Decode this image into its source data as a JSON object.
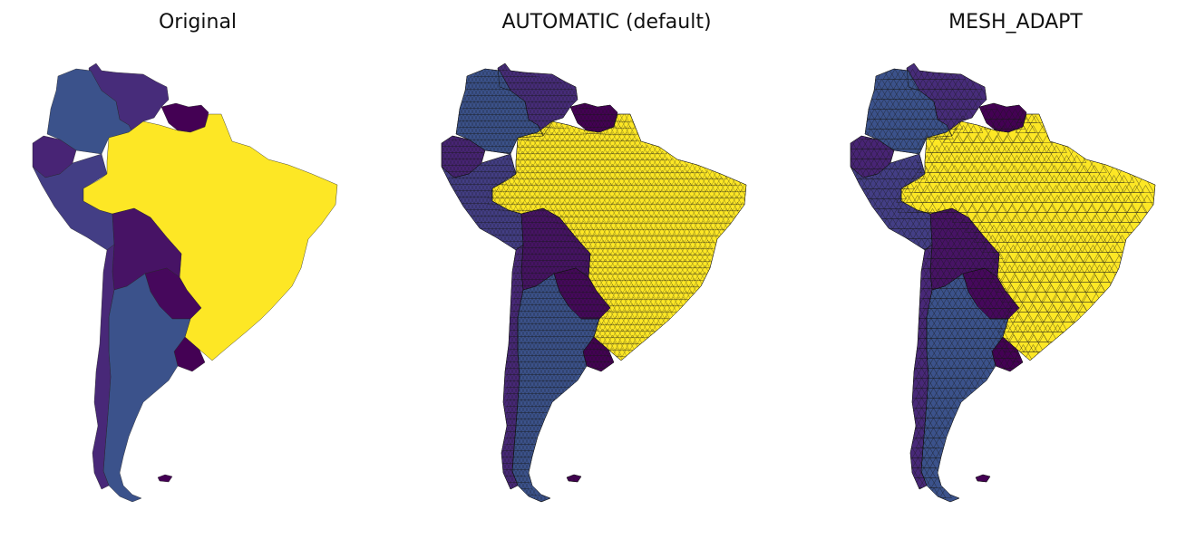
{
  "panels": [
    {
      "title": "Original",
      "mesh": "none"
    },
    {
      "title": "AUTOMATIC (default)",
      "mesh": "fine"
    },
    {
      "title": "MESH_ADAPT",
      "mesh": "coarse"
    }
  ],
  "colors": {
    "brazil": "#fde725",
    "argentina": "#3b528b",
    "colombia": "#3b528b",
    "venezuela": "#472c7a",
    "guyana_suriname": "#440154",
    "chile": "#482878",
    "bolivia": "#471365",
    "peru": "#433e85",
    "ecuador": "#482475",
    "paraguay": "#46085c",
    "uruguay": "#440154",
    "falklands": "#440154",
    "mesh_line": "#1a1a1a"
  }
}
